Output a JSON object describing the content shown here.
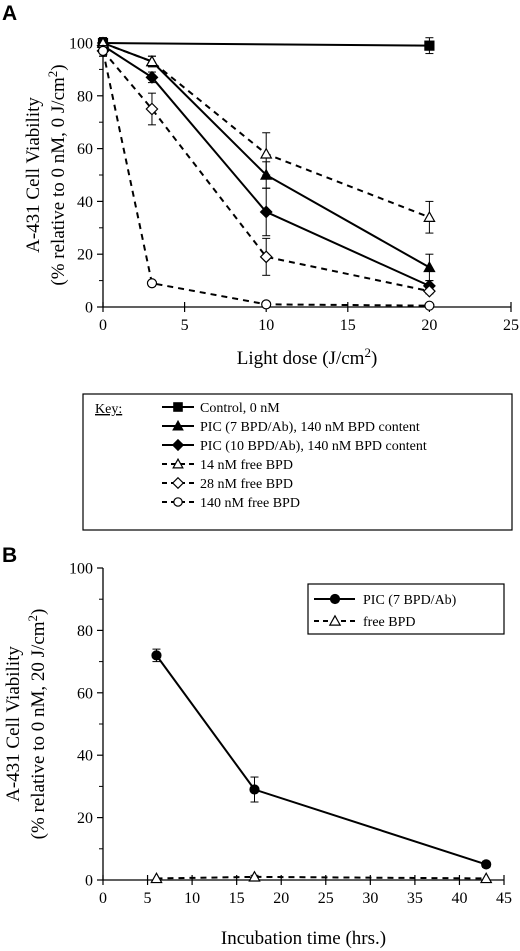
{
  "chart_data": [
    {
      "panel": "A",
      "type": "line",
      "xlabel_main": "Light dose (J/cm",
      "xlabel_sup": "2",
      "xlabel_tail": ")",
      "ylabel_line1": "A-431 Cell Viability",
      "ylabel_line2_main": "(% relative to 0 nM, 0 J/cm",
      "ylabel_line2_sup": "2",
      "ylabel_line2_tail": ")",
      "xlim": [
        0,
        25
      ],
      "ylim": [
        0,
        100
      ],
      "xticks": [
        0,
        5,
        10,
        15,
        20,
        25
      ],
      "yticks": [
        0,
        20,
        40,
        60,
        80,
        100
      ],
      "grid": false,
      "legend_title": "Key:",
      "legend_placement": "below",
      "series": [
        {
          "name": "Control, 0 nM",
          "marker": "square-filled",
          "dash": false,
          "points": [
            {
              "x": 0,
              "y": 100,
              "err": 2
            },
            {
              "x": 20,
              "y": 99,
              "err": 3
            }
          ]
        },
        {
          "name": "PIC (7 BPD/Ab), 140 nM BPD content",
          "marker": "triangle-filled",
          "dash": false,
          "points": [
            {
              "x": 0,
              "y": 100,
              "err": 2
            },
            {
              "x": 3,
              "y": 93,
              "err": 2
            },
            {
              "x": 10,
              "y": 50,
              "err": 5
            },
            {
              "x": 20,
              "y": 15,
              "err": 5
            }
          ]
        },
        {
          "name": "PIC (10 BPD/Ab), 140 nM BPD content",
          "marker": "diamond-filled",
          "dash": false,
          "points": [
            {
              "x": 0,
              "y": 99,
              "err": 2
            },
            {
              "x": 3,
              "y": 87,
              "err": 2
            },
            {
              "x": 10,
              "y": 36,
              "err": 9
            },
            {
              "x": 20,
              "y": 8,
              "err": 2
            }
          ]
        },
        {
          "name": "14 nM free BPD",
          "marker": "triangle-open",
          "dash": true,
          "points": [
            {
              "x": 0,
              "y": 100,
              "err": 2
            },
            {
              "x": 3,
              "y": 93,
              "err": 2
            },
            {
              "x": 10,
              "y": 58,
              "err": 8
            },
            {
              "x": 20,
              "y": 34,
              "err": 6
            }
          ]
        },
        {
          "name": "28 nM free BPD",
          "marker": "diamond-open",
          "dash": true,
          "points": [
            {
              "x": 0,
              "y": 97,
              "err": 2
            },
            {
              "x": 3,
              "y": 75,
              "err": 6
            },
            {
              "x": 10,
              "y": 19,
              "err": 7
            },
            {
              "x": 20,
              "y": 6,
              "err": 1
            }
          ]
        },
        {
          "name": "140 nM free BPD",
          "marker": "circle-open",
          "dash": true,
          "points": [
            {
              "x": 0,
              "y": 97,
              "err": 2
            },
            {
              "x": 3,
              "y": 9,
              "err": 1
            },
            {
              "x": 10,
              "y": 1,
              "err": 1
            },
            {
              "x": 20,
              "y": 0.5,
              "err": 0.5
            }
          ]
        }
      ]
    },
    {
      "panel": "B",
      "type": "line",
      "xlabel_main": "Incubation time (hrs.)",
      "xlabel_sup": "",
      "xlabel_tail": "",
      "ylabel_line1": "A-431 Cell Viability",
      "ylabel_line2_main": "(% relative to 0 nM, 20 J/cm",
      "ylabel_line2_sup": "2",
      "ylabel_line2_tail": ")",
      "xlim": [
        0,
        45
      ],
      "ylim": [
        0,
        100
      ],
      "xticks": [
        0,
        5,
        10,
        15,
        20,
        25,
        30,
        35,
        40,
        45
      ],
      "yticks": [
        0,
        20,
        40,
        60,
        80,
        100
      ],
      "grid": false,
      "legend_placement": "top-right",
      "series": [
        {
          "name": "PIC (7 BPD/Ab)",
          "marker": "circle-filled",
          "dash": false,
          "points": [
            {
              "x": 6,
              "y": 72,
              "err": 2
            },
            {
              "x": 17,
              "y": 29,
              "err": 4
            },
            {
              "x": 43,
              "y": 5,
              "err": 1
            }
          ]
        },
        {
          "name": "free BPD",
          "marker": "triangle-open",
          "dash": true,
          "points": [
            {
              "x": 6,
              "y": 0.5,
              "err": 0
            },
            {
              "x": 17,
              "y": 1,
              "err": 0.5
            },
            {
              "x": 43,
              "y": 0.5,
              "err": 0
            }
          ]
        }
      ]
    }
  ]
}
